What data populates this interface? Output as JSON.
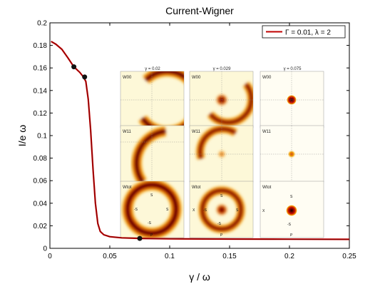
{
  "chart_data": {
    "type": "line",
    "title": "Current-Wigner",
    "xlabel": "γ / ω",
    "ylabel": "I/e ω",
    "xlim": [
      0,
      0.25
    ],
    "ylim": [
      0,
      0.2
    ],
    "x_ticks": [
      0,
      0.05,
      0.1,
      0.15,
      0.2,
      0.25
    ],
    "x_tick_labels": [
      "0",
      "0.05",
      "0.1",
      "0.15",
      "0.2",
      "0.25"
    ],
    "y_ticks": [
      0,
      0.02,
      0.04,
      0.06,
      0.08,
      0.1,
      0.12,
      0.14,
      0.16,
      0.18,
      0.2
    ],
    "y_tick_labels": [
      "0",
      "0.02",
      "0.04",
      "0.06",
      "0.08",
      "0.1",
      "0.12",
      "0.14",
      "0.16",
      "0.18",
      "0.2"
    ],
    "grid": false,
    "legend_position": "top-right",
    "series": [
      {
        "name": "Γ = 0.01, λ = 2",
        "color": "#c00000",
        "x": [
          0.001,
          0.005,
          0.01,
          0.015,
          0.02,
          0.025,
          0.028,
          0.03,
          0.032,
          0.034,
          0.036,
          0.038,
          0.04,
          0.042,
          0.045,
          0.05,
          0.06,
          0.075,
          0.1,
          0.15,
          0.2,
          0.25
        ],
        "y": [
          0.1835,
          0.181,
          0.1765,
          0.169,
          0.161,
          0.156,
          0.152,
          0.148,
          0.132,
          0.105,
          0.07,
          0.04,
          0.022,
          0.015,
          0.012,
          0.0103,
          0.0093,
          0.0088,
          0.0084,
          0.0082,
          0.0081,
          0.008
        ]
      }
    ],
    "markers": [
      {
        "x": 0.02,
        "y": 0.161
      },
      {
        "x": 0.029,
        "y": 0.152
      },
      {
        "x": 0.075,
        "y": 0.0088
      }
    ]
  },
  "inset": {
    "column_labels": [
      "γ = 0.02",
      "γ = 0.029",
      "γ = 0.075"
    ],
    "row_labels": [
      "W00",
      "W11",
      "Wtot"
    ],
    "axis_labels": {
      "top": "S",
      "bottom": "-S",
      "left": "-S",
      "right": "S",
      "x": "X",
      "p": "P"
    },
    "plot_background": "#fdf8d8",
    "hot_colors": [
      "#fffbe0",
      "#f5a000",
      "#cc1000",
      "#600000",
      "#140000"
    ]
  }
}
